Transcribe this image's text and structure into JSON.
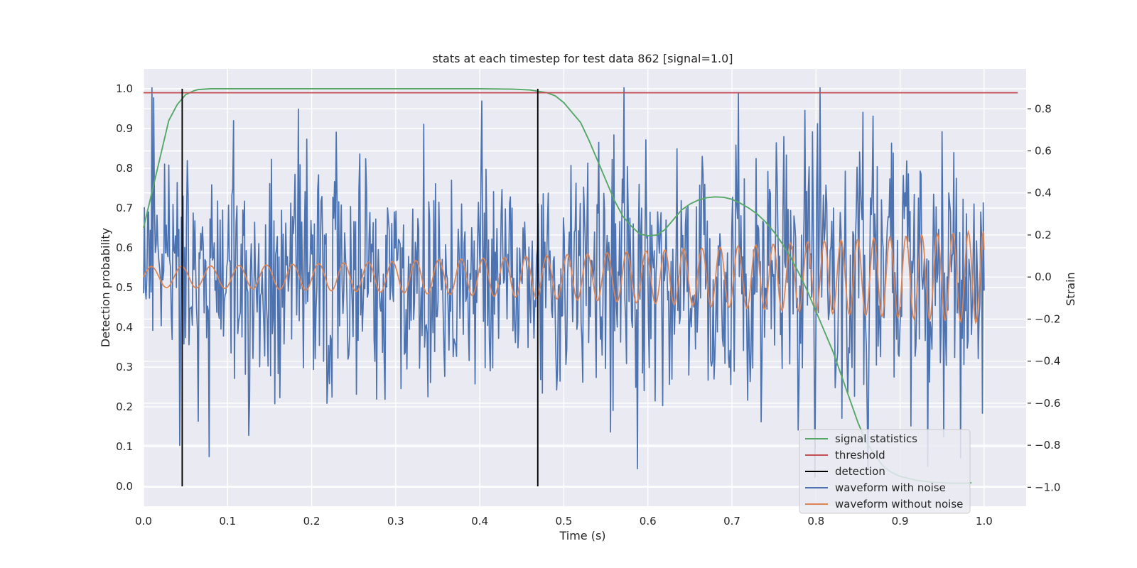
{
  "chart_data": {
    "type": "line",
    "title": "stats at each timestep for test data 862 [signal=1.0]",
    "xlabel": "Time (s)",
    "ylabel_left": "Detection probability",
    "ylabel_right": "Strain",
    "xlim": [
      0.0,
      1.05
    ],
    "ylim_left": [
      -0.05,
      1.05
    ],
    "ylim_right": [
      -1.09,
      0.99
    ],
    "xticks": [
      "0.0",
      "0.1",
      "0.2",
      "0.3",
      "0.4",
      "0.5",
      "0.6",
      "0.7",
      "0.8",
      "0.9",
      "1.0"
    ],
    "yticks_left": [
      "0.0",
      "0.1",
      "0.2",
      "0.3",
      "0.4",
      "0.5",
      "0.6",
      "0.7",
      "0.8",
      "0.9",
      "1.0"
    ],
    "yticks_right": [
      "−1.0",
      "−0.8",
      "−0.6",
      "−0.4",
      "−0.2",
      "0.0",
      "0.2",
      "0.4",
      "0.6",
      "0.8"
    ],
    "grid": true,
    "legend_position": "lower right",
    "series": [
      {
        "name": "signal statistics",
        "axis": "left",
        "color": "#55a868",
        "x": [
          0.0,
          0.01,
          0.02,
          0.03,
          0.04,
          0.05,
          0.06,
          0.065,
          0.08,
          0.1,
          0.2,
          0.3,
          0.4,
          0.44,
          0.46,
          0.48,
          0.49,
          0.5,
          0.51,
          0.52,
          0.53,
          0.54,
          0.55,
          0.56,
          0.57,
          0.58,
          0.59,
          0.6,
          0.61,
          0.62,
          0.63,
          0.64,
          0.65,
          0.66,
          0.67,
          0.68,
          0.69,
          0.7,
          0.71,
          0.72,
          0.73,
          0.74,
          0.75,
          0.76,
          0.77,
          0.78,
          0.79,
          0.8,
          0.81,
          0.82,
          0.83,
          0.84,
          0.85,
          0.86,
          0.87,
          0.88,
          0.89,
          0.9,
          0.92,
          0.94,
          0.96,
          0.98,
          0.985
        ],
        "y": [
          0.65,
          0.74,
          0.83,
          0.92,
          0.96,
          0.985,
          0.995,
          0.998,
          1.0,
          1.0,
          1.0,
          1.0,
          1.0,
          0.999,
          0.997,
          0.99,
          0.982,
          0.965,
          0.94,
          0.915,
          0.87,
          0.82,
          0.77,
          0.72,
          0.68,
          0.655,
          0.635,
          0.63,
          0.632,
          0.645,
          0.67,
          0.695,
          0.71,
          0.72,
          0.726,
          0.728,
          0.727,
          0.722,
          0.712,
          0.7,
          0.685,
          0.665,
          0.64,
          0.61,
          0.575,
          0.535,
          0.49,
          0.44,
          0.39,
          0.34,
          0.28,
          0.22,
          0.16,
          0.11,
          0.08,
          0.05,
          0.035,
          0.025,
          0.015,
          0.01,
          0.008,
          0.008,
          0.009
        ]
      },
      {
        "name": "threshold",
        "axis": "left",
        "color": "#c44e52",
        "x": [
          0.0,
          1.04
        ],
        "y": [
          0.99,
          0.99
        ]
      },
      {
        "name": "detection",
        "axis": "left",
        "color": "#000000",
        "x": [
          0.046,
          0.469
        ],
        "y_range": [
          0.0,
          1.0
        ]
      },
      {
        "name": "waveform with noise",
        "axis": "right",
        "color": "#4c72b0",
        "x_range": [
          0.0,
          1.0
        ],
        "num_points": 1000,
        "approx_std": 0.3,
        "approx_range": [
          -1.0,
          0.9
        ]
      },
      {
        "name": "waveform without noise",
        "axis": "right",
        "color": "#dd8452",
        "x_range": [
          0.0,
          1.0
        ],
        "envelope_start": 0.05,
        "envelope_end": 0.22,
        "cycles_start_period": 0.037,
        "cycles_end_period": 0.018,
        "end_value": 0.13
      }
    ]
  }
}
